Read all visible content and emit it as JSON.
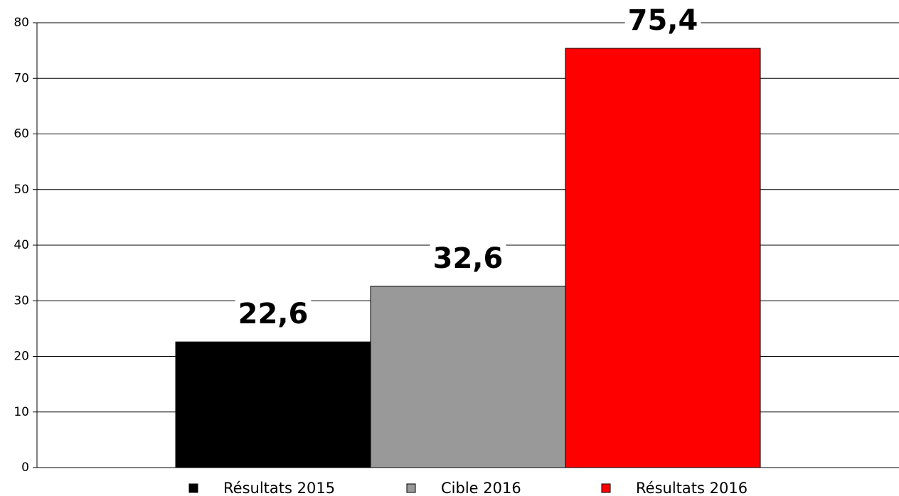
{
  "chart_data": {
    "type": "bar",
    "categories": [
      null
    ],
    "series": [
      {
        "name": "Résultats 2015",
        "color": "#000000",
        "values": [
          22.6
        ],
        "value_labels": [
          "22,6"
        ]
      },
      {
        "name": "Cible 2016",
        "color": "#999999",
        "values": [
          32.6
        ],
        "value_labels": [
          "32,6"
        ]
      },
      {
        "name": "Résultats 2016",
        "color": "#ff0000",
        "values": [
          75.4
        ],
        "value_labels": [
          "75,4"
        ]
      }
    ],
    "ylim": [
      0,
      80
    ],
    "yticks": [
      0,
      10,
      20,
      30,
      40,
      50,
      60,
      70,
      80
    ],
    "grid": true,
    "legend": "bottom"
  }
}
